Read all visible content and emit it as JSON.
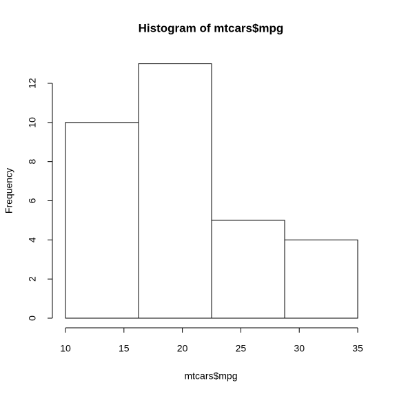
{
  "chart_data": {
    "type": "histogram",
    "title": "Histogram of mtcars$mpg",
    "x_label": "mtcars$mpg",
    "y_label": "Frequency",
    "bins": [
      10,
      16.25,
      22.5,
      28.75,
      35
    ],
    "values": [
      10,
      13,
      5,
      4
    ],
    "color": "#ffffff",
    "edge_color": "#000000",
    "xlim": [
      10,
      35
    ],
    "xticks": [
      10,
      15,
      20,
      25,
      30,
      35
    ],
    "ylim": [
      0,
      12
    ],
    "yticks": [
      0,
      2,
      4,
      6,
      8,
      10,
      12
    ]
  }
}
